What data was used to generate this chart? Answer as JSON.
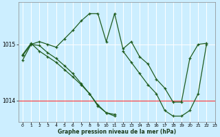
{
  "background_color": "#cceeff",
  "line_color": "#1e5c1e",
  "grid_color": "#ffffff",
  "red_line_color": "#ff3333",
  "xlabel": "Graphe pression niveau de la mer (hPa)",
  "xlim": [
    -0.5,
    23
  ],
  "ylim": [
    1013.62,
    1015.75
  ],
  "yticks": [
    1014,
    1015
  ],
  "xticks": [
    0,
    1,
    2,
    3,
    4,
    5,
    6,
    7,
    8,
    9,
    10,
    11,
    12,
    13,
    14,
    15,
    16,
    17,
    18,
    19,
    20,
    21,
    22,
    23
  ],
  "series": [
    {
      "x": [
        0,
        1,
        2,
        3,
        4,
        5,
        6,
        7,
        8,
        9,
        10,
        11,
        12,
        13,
        14,
        15,
        16,
        17,
        18,
        19,
        20,
        21,
        22
      ],
      "y": [
        1014.72,
        1015.0,
        1015.05,
        1015.0,
        1014.95,
        1015.1,
        1015.25,
        1015.42,
        1015.55,
        1015.55,
        1015.05,
        1015.55,
        1014.92,
        1015.05,
        1014.78,
        1014.65,
        1014.38,
        1014.22,
        1013.97,
        1013.97,
        1014.75,
        1015.0,
        1015.02
      ]
    },
    {
      "x": [
        0,
        1,
        2,
        3,
        4,
        5,
        6,
        7,
        8,
        9,
        10,
        11
      ],
      "y": [
        1014.8,
        1015.0,
        1014.98,
        1014.85,
        1014.75,
        1014.62,
        1014.48,
        1014.3,
        1014.12,
        1013.92,
        1013.78,
        1013.75
      ]
    },
    {
      "x": [
        0,
        1,
        2,
        3,
        4,
        5,
        6,
        7,
        8,
        9,
        10,
        11
      ],
      "y": [
        1014.82,
        1015.02,
        1014.88,
        1014.78,
        1014.68,
        1014.55,
        1014.42,
        1014.28,
        1014.12,
        1013.9,
        1013.78,
        1013.72
      ]
    },
    {
      "x": [
        12,
        13,
        14,
        15,
        16,
        17,
        18,
        19,
        20,
        21,
        22
      ],
      "y": [
        1014.88,
        1014.68,
        1014.48,
        1014.28,
        1014.12,
        1013.82,
        1013.72,
        1013.72,
        1013.82,
        1014.12,
        1015.0
      ]
    }
  ],
  "red_line_y": 1014.0
}
